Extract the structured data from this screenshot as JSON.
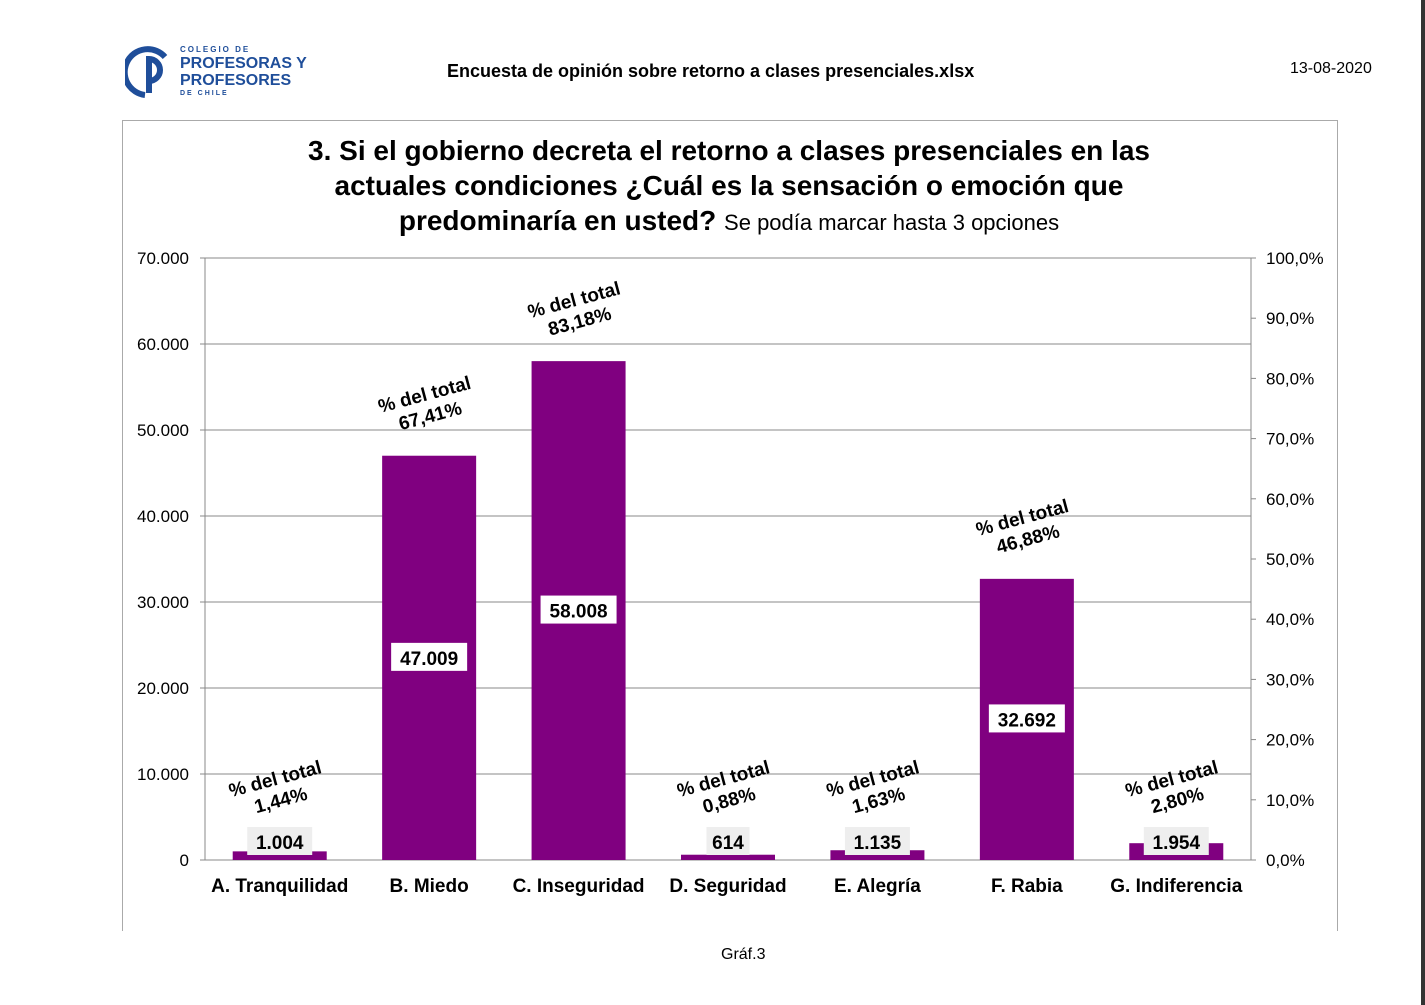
{
  "header": {
    "logo_lines": [
      "COLEGIO DE",
      "PROFESORAS Y",
      "PROFESORES",
      "DE CHILE"
    ],
    "document": "Encuesta de opinión sobre retorno a clases presenciales.xlsx",
    "date": "13-08-2020"
  },
  "footer": "Gráf.3",
  "chart_data": {
    "type": "bar",
    "title": "3. Si el gobierno decreta el retorno a clases presenciales en las actuales condiciones ¿Cuál es la sensación o emoción que predominaría en usted?",
    "subtitle": "Se podía marcar hasta 3 opciones",
    "categories": [
      "A. Tranquilidad",
      "B. Miedo",
      "C. Inseguridad",
      "D. Seguridad",
      "E. Alegría",
      "F. Rabia",
      "G. Indiferencia"
    ],
    "values": [
      1004,
      47009,
      58008,
      614,
      1135,
      32692,
      1954
    ],
    "value_labels": [
      "1.004",
      "47.009",
      "58.008",
      "614",
      "1.135",
      "32.692",
      "1.954"
    ],
    "percent_prefix": "% del total",
    "percent_labels": [
      "1,44%",
      "67,41%",
      "83,18%",
      "0,88%",
      "1,63%",
      "46,88%",
      "2,80%"
    ],
    "ylim": [
      0,
      70000
    ],
    "yticks": [
      "0",
      "10.000",
      "20.000",
      "30.000",
      "40.000",
      "50.000",
      "60.000",
      "70.000"
    ],
    "y2lim": [
      0,
      100
    ],
    "y2ticks": [
      "0,0%",
      "10,0%",
      "20,0%",
      "30,0%",
      "40,0%",
      "50,0%",
      "60,0%",
      "70,0%",
      "80,0%",
      "90,0%",
      "100,0%"
    ],
    "bar_color": "#800080",
    "grid": true
  }
}
